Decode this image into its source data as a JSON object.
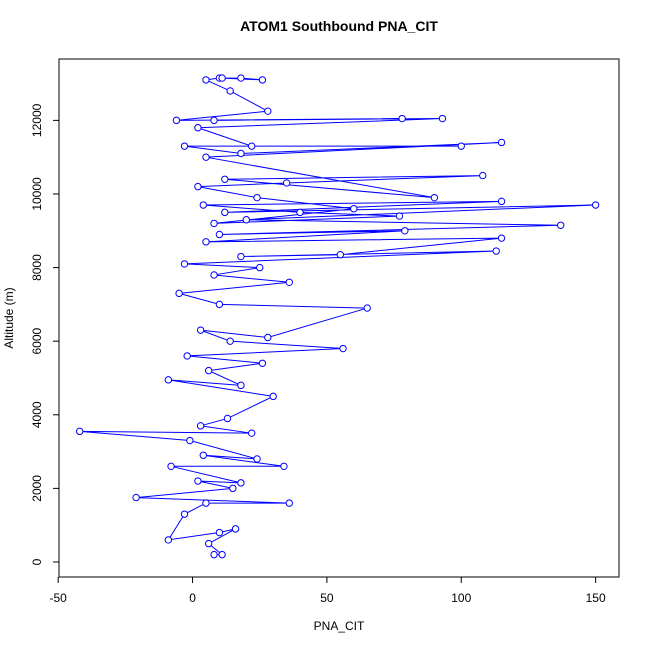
{
  "chart_data": {
    "type": "scatter",
    "title": "ATOM1 Southbound PNA_CIT",
    "x_label": "PNA_CIT",
    "y_label": "Altitude (m)",
    "color": "#0000ff",
    "connect": true,
    "x": [
      8,
      11,
      6,
      16,
      10,
      -9,
      -3,
      5,
      36,
      -21,
      15,
      2,
      18,
      -8,
      34,
      4,
      24,
      -1,
      -42,
      22,
      3,
      13,
      30,
      -9,
      18,
      6,
      26,
      -2,
      56,
      14,
      3,
      28,
      65,
      10,
      -5,
      36,
      8,
      25,
      -3,
      113,
      18,
      55,
      115,
      5,
      79,
      10,
      137,
      20,
      150,
      12,
      115,
      4,
      40,
      77,
      8,
      60,
      24,
      2,
      35,
      108,
      12,
      90,
      5,
      115,
      18,
      -3,
      100,
      22,
      2,
      93,
      8,
      78,
      -6,
      28,
      14,
      5,
      10,
      26,
      18,
      11
    ],
    "values": [
      200,
      200,
      500,
      900,
      800,
      600,
      1300,
      1600,
      1600,
      1750,
      2000,
      2200,
      2150,
      2600,
      2600,
      2900,
      2800,
      3300,
      3550,
      3500,
      3700,
      3900,
      4500,
      4950,
      4800,
      5200,
      5400,
      5600,
      5800,
      6000,
      6300,
      6100,
      6900,
      7000,
      7300,
      7600,
      7800,
      8000,
      8100,
      8450,
      8300,
      8350,
      8800,
      8700,
      9000,
      8900,
      9150,
      9300,
      9700,
      9500,
      9800,
      9700,
      9500,
      9400,
      9200,
      9600,
      9900,
      10200,
      10300,
      10500,
      10400,
      9900,
      11000,
      11400,
      11100,
      11300,
      11300,
      11300,
      11800,
      12050,
      12000,
      12050,
      12000,
      12250,
      12800,
      13100,
      13150,
      13100,
      13150,
      13150
    ],
    "xlim": [
      -49.7,
      158.7
    ],
    "ylim": [
      -408,
      13668
    ],
    "xticks": [
      -50,
      0,
      50,
      100,
      150
    ],
    "yticks": [
      0,
      2000,
      4000,
      6000,
      8000,
      10000,
      12000
    ]
  }
}
